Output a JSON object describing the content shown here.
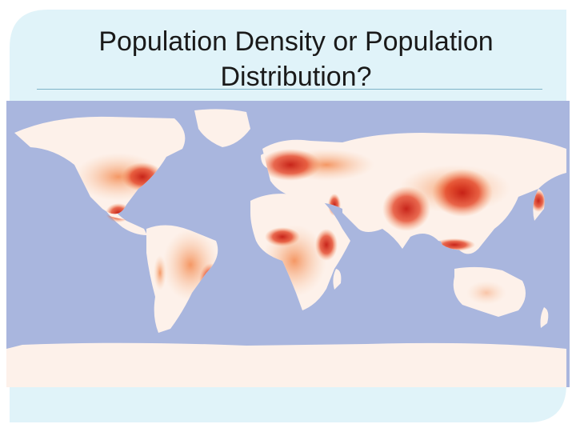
{
  "slide": {
    "title_line1": "Population Density or Population",
    "title_line2": "Distribution?"
  },
  "map": {
    "type": "world population distribution map",
    "colors": {
      "ocean": "#a9b6de",
      "land_sparse": "#fdf1ea",
      "land_low": "#f9c9a6",
      "land_medium": "#f3874c",
      "land_high": "#e23b1c",
      "land_very_high": "#c41a10",
      "frame_background": "#e0f3f9"
    }
  }
}
